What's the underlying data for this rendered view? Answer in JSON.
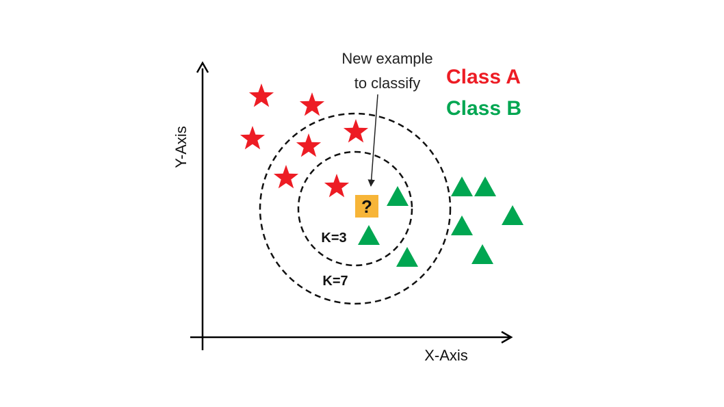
{
  "axes": {
    "x_label": "X-Axis",
    "y_label": "Y-Axis"
  },
  "annotation": {
    "line1": "New example",
    "line2": "to classify"
  },
  "legend": {
    "class_a": "Class A",
    "class_b": "Class B"
  },
  "query": {
    "symbol": "?"
  },
  "neighborhoods": {
    "inner_label": "K=3",
    "outer_label": "K=7"
  },
  "colors": {
    "class_a": "#ed1c24",
    "class_b": "#00a651",
    "query_fill": "#f7b538",
    "axis": "#000000"
  },
  "icons": {
    "class_a_marker": "star",
    "class_b_marker": "triangle",
    "query_marker": "question-mark-square"
  }
}
